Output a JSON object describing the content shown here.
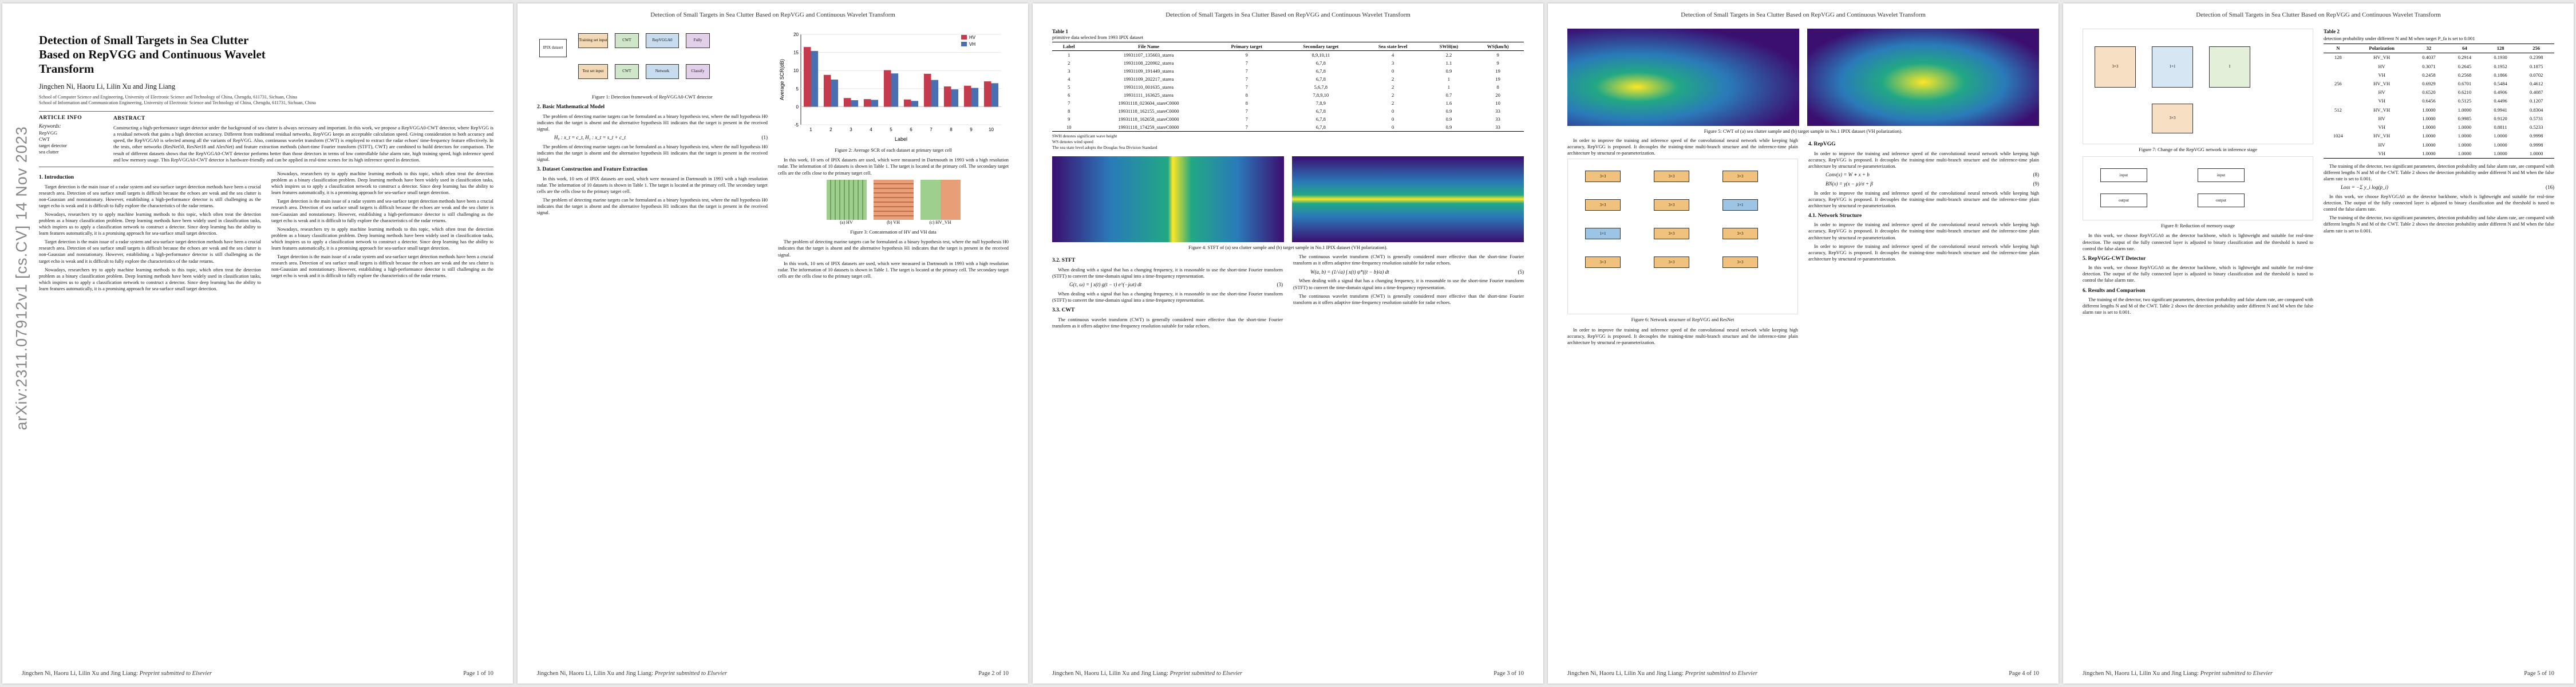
{
  "running_header": "Detection of Small Targets in Sea Clutter Based on RepVGG and Continuous Wavelet Transform",
  "footer": {
    "authors": "Jingchen Ni, Haoru Li, Lilin Xu and Jing Liang:",
    "journal": "Preprint submitted to Elsevier"
  },
  "page_labels": [
    "Page 1 of 10",
    "Page 2 of 10",
    "Page 3 of 10",
    "Page 4 of 10",
    "Page 5 of 10"
  ],
  "arxiv_stamp": "arXiv:2311.07912v1 [cs.CV] 14 Nov 2023",
  "paper": {
    "title": "Detection of Small Targets in Sea Clutter Based on RepVGG and Continuous Wavelet Transform",
    "authors": "Jingchen Ni, Haoru Li, Lilin Xu and Jing Liang",
    "affiliations": [
      "School of Computer Science and Engineering, University of Electronic Science and Technology of China, Chengdu, 611731, Sichuan, China",
      "School of Information and Communication Engineering, University of Electronic Science and Technology of China, Chengdu, 611731, Sichuan, China"
    ],
    "article_info": "ARTICLE INFO",
    "keywords_label": "Keywords:",
    "keywords": [
      "RepVGG",
      "CWT",
      "target detector",
      "sea clutter"
    ],
    "abstract_label": "ABSTRACT",
    "abstract": "Constructing a high-performance target detector under the background of sea clutter is always necessary and important. In this work, we propose a RepVGGA0-CWT detector, where RepVGG is a residual network that gains a high detection accuracy. Different from traditional residual networks, RepVGG keeps an acceptable calculation speed. Giving consideration to both accuracy and speed, the RepVGGA0 is selected among all the variants of RepVGG. Also, continuous wavelet transform (CWT) is employed to extract the radar echoes' time-frequency feature effectively. In the tests, other networks (ResNet50, ResNet18 and AlexNet) and feature extraction methods (short-time Fourier transform (STFT), CWT) are combined to build detectors for comparison. The result of different datasets shows that the RepVGGA0-CWT detector performs better than those detectors in terms of low controllable false alarm rate, high training speed, high inference speed and low memory usage. This RepVGGA0-CWT detector is hardware-friendly and can be applied in real-time scenes for its high inference speed in detection.",
    "sections": {
      "intro": "1. Introduction",
      "model": "2. Basic Mathematical Model",
      "dataset": "3. Dataset Construction and Feature Extraction",
      "stft": "3.2. STFT",
      "cwt": "3.3. CWT",
      "repvgg": "4. RepVGG",
      "net": "4.1. Network Structure",
      "detector": "5. RepVGG-CWT Detector",
      "results": "6. Results and Comparison"
    }
  },
  "figures": {
    "fig1": "Figure 1: Detection framework of RepVGGA0-CWT detector",
    "fig2": "Figure 2: Average SCR of each dataset at primary target cell",
    "fig3": "Figure 3: Concatenation of HV and VH data",
    "fig4": "Figure 4: STFT of (a) sea clutter sample and (b) target sample in No.1 IPIX dataset (VH polarization).",
    "fig5": "Figure 5: CWT of (a) sea clutter sample and (b) target sample in No.1 IPIX dataset (VH polarization).",
    "fig6": "Figure 6: Network structure of RepVGG and ResNet",
    "fig7": "Figure 7: Change of the RepVGG network in inference stage",
    "fig8": "Figure 8: Reduction of memory usage",
    "fig1_boxes": [
      "IPIX dataset",
      "Training set input",
      "CWT",
      "RepVGGA0",
      "Fully",
      "Test set input",
      "CWT",
      "Network",
      "Classify"
    ],
    "fig3_sub": [
      "(a) HV",
      "(b) VH",
      "(c) HV_VH"
    ]
  },
  "table1": {
    "label": "Table 1",
    "caption": "primitive data selected from 1993 IPIX dataset",
    "headers": [
      "Label",
      "File Name",
      "Primary target",
      "Secondary target",
      "Sea state level",
      "SWH(m)",
      "WS(km/h)"
    ],
    "rows": [
      [
        "1",
        "19931107_135603_starea",
        "9",
        "8,9,10,11",
        "4",
        "2.2",
        "9"
      ],
      [
        "2",
        "19931108_220902_starea",
        "7",
        "6,7,8",
        "3",
        "1.1",
        "9"
      ],
      [
        "3",
        "19931109_191449_starea",
        "7",
        "6,7,8",
        "0",
        "0.9",
        "19"
      ],
      [
        "4",
        "19931109_202217_starea",
        "7",
        "6,7,8",
        "2",
        "1",
        "19"
      ],
      [
        "5",
        "19931110_001635_starea",
        "7",
        "5,6,7,8",
        "2",
        "1",
        "8"
      ],
      [
        "6",
        "19931111_163625_starea",
        "8",
        "7,8,9,10",
        "2",
        "0.7",
        "20"
      ],
      [
        "7",
        "19931118_023604_stareC0000",
        "8",
        "7,8,9",
        "2",
        "1.6",
        "10"
      ],
      [
        "8",
        "19931118_162155_stareC0000",
        "7",
        "6,7,8",
        "0",
        "0.9",
        "33"
      ],
      [
        "9",
        "19931118_162658_stareC0000",
        "7",
        "6,7,8",
        "0",
        "0.9",
        "33"
      ],
      [
        "10",
        "19931118_174259_stareC0000",
        "7",
        "6,7,8",
        "0",
        "0.9",
        "33"
      ]
    ],
    "notes": [
      "SWH denotes significant wave height",
      "WS denotes wind speed",
      "The sea state level adopts the Douglas Sea Division Standard"
    ]
  },
  "table2": {
    "label": "Table 2",
    "caption": "detection probability under different N and M when target P_fa is set to 0.001",
    "headers": [
      "N",
      "Polarization",
      "32",
      "64",
      "128",
      "256"
    ],
    "groups": [
      {
        "n": "128",
        "rows": [
          [
            "HV_VH",
            "0.4037",
            "0.2914",
            "0.1930",
            "0.2398"
          ],
          [
            "HV",
            "0.3071",
            "0.2645",
            "0.1952",
            "0.1875"
          ],
          [
            "VH",
            "0.2458",
            "0.2568",
            "0.1866",
            "0.0702"
          ]
        ]
      },
      {
        "n": "256",
        "rows": [
          [
            "HV_VH",
            "0.6929",
            "0.6701",
            "0.5484",
            "0.4612"
          ],
          [
            "HV",
            "0.6520",
            "0.6210",
            "0.4906",
            "0.4087"
          ],
          [
            "VH",
            "0.6456",
            "0.5125",
            "0.4496",
            "0.1207"
          ]
        ]
      },
      {
        "n": "512",
        "rows": [
          [
            "HV_VH",
            "1.0000",
            "1.0000",
            "0.9941",
            "0.8304"
          ],
          [
            "HV",
            "1.0000",
            "0.9985",
            "0.9120",
            "0.5731"
          ],
          [
            "VH",
            "1.0000",
            "1.0000",
            "0.8811",
            "0.5233"
          ]
        ]
      },
      {
        "n": "1024",
        "rows": [
          [
            "HV_VH",
            "1.0000",
            "1.0000",
            "1.0000",
            "0.9998"
          ],
          [
            "HV",
            "1.0000",
            "1.0000",
            "1.0000",
            "0.9998"
          ],
          [
            "VH",
            "1.0000",
            "1.0000",
            "1.0000",
            "1.0000"
          ]
        ]
      }
    ]
  },
  "chart_data": {
    "type": "bar",
    "title": "",
    "xlabel": "Label",
    "ylabel": "Average SCR(dB)",
    "categories": [
      "1",
      "2",
      "3",
      "4",
      "5",
      "6",
      "7",
      "8",
      "9",
      "10"
    ],
    "ylim": [
      -5,
      20
    ],
    "series": [
      {
        "name": "HV",
        "values": [
          16.5,
          8.8,
          2.4,
          2.1,
          10.1,
          2.0,
          9.1,
          5.6,
          5.8,
          7.0
        ]
      },
      {
        "name": "VH",
        "values": [
          15.4,
          7.5,
          1.8,
          1.9,
          9.2,
          1.6,
          7.4,
          4.8,
          5.2,
          6.5
        ]
      }
    ],
    "colors": {
      "HV": "#c53a4d",
      "VH": "#4a6fb0"
    },
    "legend": "top-right"
  },
  "body": {
    "p1_intro_1": "Target detection is the main issue of a radar system and sea-surface target detection methods have been a crucial research area. Detection of sea surface small targets is difficult because the echoes are weak and the sea clutter is non-Gaussian and nonstationary. However, establishing a high-performance detector is still challenging as the target echo is weak and it is difficult to fully explore the characteristics of the radar returns.",
    "p1_intro_2": "Nowadays, researchers try to apply machine learning methods to this topic, which often treat the detection problem as a binary classification problem. Deep learning methods have been widely used in classification tasks, which inspires us to apply a classification network to construct a detector. Since deep learning has the ability to learn features automatically, it is a promising approach for sea-surface small target detection.",
    "p2_model": "The problem of detecting marine targets can be formulated as a binary hypothesis test, where the null hypothesis H0 indicates that the target is absent and the alternative hypothesis H1 indicates that the target is present in the received signal.",
    "p2_dataset": "In this work, 10 sets of IPIX datasets are used, which were measured in Dartmouth in 1993 with a high resolution radar. The information of 10 datasets is shown in Table 1. The target is located at the primary cell. The secondary target cells are the cells close to the primary target cell.",
    "p3_stft": "When dealing with a signal that has a changing frequency, it is reasonable to use the short-time Fourier transform (STFT) to convert the time-domain signal into a time-frequency representation.",
    "p3_cwt": "The continuous wavelet transform (CWT) is generally considered more effective than the short-time Fourier transform as it offers adaptive time-frequency resolution suitable for radar echoes.",
    "p4_repvgg": "In order to improve the training and inference speed of the convolutional neural network while keeping high accuracy, RepVGG is proposed. It decouples the training-time multi-branch structure and the inference-time plain architecture by structural re-parameterization.",
    "p5_detector": "In this work, we choose RepVGGA0 as the detector backbone, which is lightweight and suitable for real-time detection. The output of the fully connected layer is adjusted to binary classification and the threshold is tuned to control the false alarm rate.",
    "p5_results": "The training of the detector, two significant parameters, detection probability and false alarm rate, are compared with different lengths N and M of the CWT. Table 2 shows the detection probability under different N and M when the false alarm rate is set to 0.001."
  }
}
